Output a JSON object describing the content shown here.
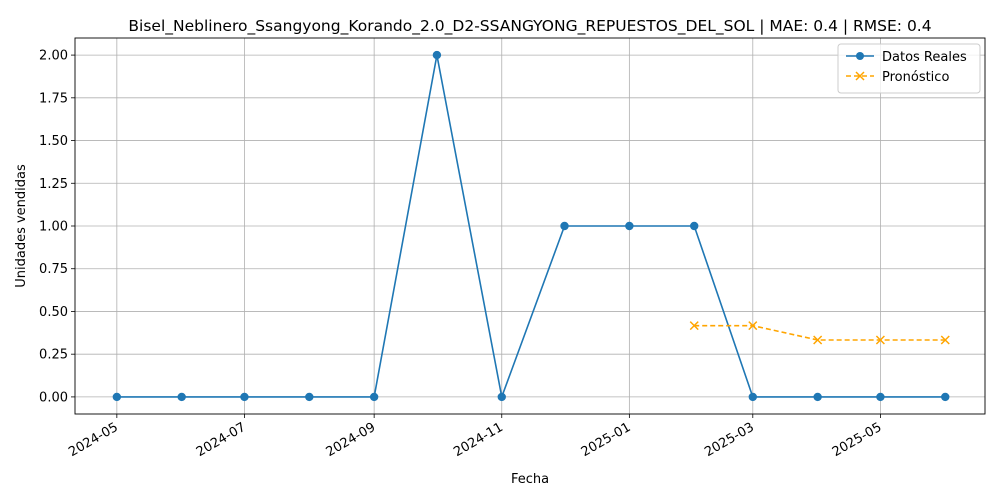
{
  "chart_data": {
    "type": "line",
    "title": "Bisel_Neblinero_Ssangyong_Korando_2.0_D2-SSANGYONG_REPUESTOS_DEL_SOL | MAE: 0.4 | RMSE: 0.4",
    "xlabel": "Fecha",
    "ylabel": "Unidades vendidas",
    "x_ticks": [
      "2024-05",
      "2024-07",
      "2024-09",
      "2024-11",
      "2025-01",
      "2025-03",
      "2025-05"
    ],
    "y_ticks": [
      "0.00",
      "0.25",
      "0.50",
      "0.75",
      "1.00",
      "1.25",
      "1.50",
      "1.75",
      "2.00"
    ],
    "xlim": [
      "2024-04-11",
      "2025-06-20"
    ],
    "ylim": [
      -0.1,
      2.1
    ],
    "grid": true,
    "legend_position": "top-right",
    "series": [
      {
        "name": "Datos Reales",
        "color": "#1f77b4",
        "marker": "circle",
        "linestyle": "solid",
        "x": [
          "2024-05-01",
          "2024-06-01",
          "2024-07-01",
          "2024-08-01",
          "2024-09-01",
          "2024-10-01",
          "2024-11-01",
          "2024-12-01",
          "2025-01-01",
          "2025-02-01",
          "2025-03-01",
          "2025-04-01",
          "2025-05-01",
          "2025-06-01"
        ],
        "values": [
          0,
          0,
          0,
          0,
          0,
          2,
          0,
          1,
          1,
          1,
          0,
          0,
          0,
          0
        ]
      },
      {
        "name": "Pronóstico",
        "color": "#ffa500",
        "marker": "x",
        "linestyle": "dashed",
        "x": [
          "2025-02-01",
          "2025-03-01",
          "2025-04-01",
          "2025-05-01",
          "2025-06-01"
        ],
        "values": [
          0.417,
          0.417,
          0.333,
          0.333,
          0.333
        ]
      }
    ]
  }
}
